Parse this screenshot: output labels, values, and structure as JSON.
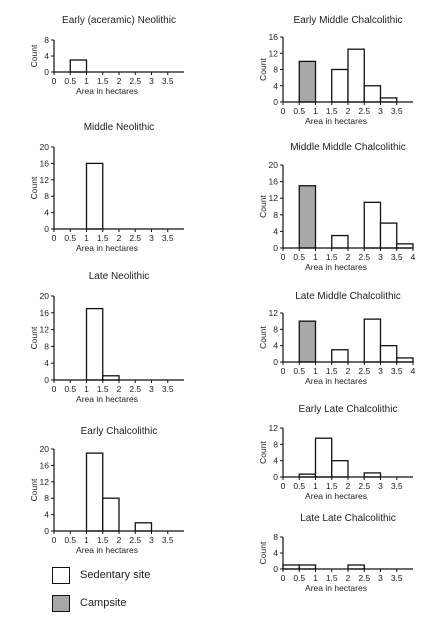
{
  "chart_data": [
    {
      "type": "bar",
      "title": "Early (aceramic) Neolithic",
      "xlabel": "Area in hectares",
      "ylabel": "Count",
      "xlim": [
        0,
        4
      ],
      "ylim": [
        0,
        8
      ],
      "yticks": [
        "0",
        "4",
        "8"
      ],
      "xticks": [
        "0",
        "0.5",
        "1",
        "1.5",
        "2",
        "2.5",
        "3",
        "3.5"
      ],
      "bars": [
        {
          "x0": 0.5,
          "x1": 1.0,
          "value": 3,
          "type": "Sedentary site"
        }
      ]
    },
    {
      "type": "bar",
      "title": "Middle Neolithic",
      "xlabel": "Area in hectares",
      "ylabel": "Count",
      "xlim": [
        0,
        4
      ],
      "ylim": [
        0,
        20
      ],
      "yticks": [
        "0",
        "4",
        "8",
        "12",
        "16",
        "20"
      ],
      "xticks": [
        "0",
        "0.5",
        "1",
        "1.5",
        "2",
        "2.5",
        "3",
        "3.5"
      ],
      "bars": [
        {
          "x0": 1.0,
          "x1": 1.5,
          "value": 16,
          "type": "Sedentary site"
        }
      ]
    },
    {
      "type": "bar",
      "title": "Late Neolithic",
      "xlabel": "Area in hectares",
      "ylabel": "Count",
      "xlim": [
        0,
        4
      ],
      "ylim": [
        0,
        20
      ],
      "yticks": [
        "0",
        "4",
        "8",
        "12",
        "16",
        "20"
      ],
      "xticks": [
        "0",
        "0.5",
        "1",
        "1.5",
        "2",
        "2.5",
        "3",
        "3.5"
      ],
      "bars": [
        {
          "x0": 1.0,
          "x1": 1.5,
          "value": 17,
          "type": "Sedentary site"
        },
        {
          "x0": 1.5,
          "x1": 2.0,
          "value": 1,
          "type": "Sedentary site"
        }
      ]
    },
    {
      "type": "bar",
      "title": "Early Chalcolithic",
      "xlabel": "Area in hectares",
      "ylabel": "Count",
      "xlim": [
        0,
        4
      ],
      "ylim": [
        0,
        20
      ],
      "yticks": [
        "0",
        "4",
        "8",
        "12",
        "16",
        "20"
      ],
      "xticks": [
        "0",
        "0.5",
        "1",
        "1.5",
        "2",
        "2.5",
        "3",
        "3.5"
      ],
      "bars": [
        {
          "x0": 1.0,
          "x1": 1.5,
          "value": 19,
          "type": "Sedentary site"
        },
        {
          "x0": 1.5,
          "x1": 2.0,
          "value": 8,
          "type": "Sedentary site"
        },
        {
          "x0": 2.5,
          "x1": 3.0,
          "value": 2,
          "type": "Sedentary site"
        }
      ]
    },
    {
      "type": "bar",
      "title": "Early Middle Chalcolithic",
      "xlabel": "Area in hectares",
      "ylabel": "Count",
      "xlim": [
        0,
        4
      ],
      "ylim": [
        0,
        16
      ],
      "yticks": [
        "0",
        "4",
        "8",
        "12",
        "16"
      ],
      "xticks": [
        "0",
        "0.5",
        "1",
        "1.5",
        "2",
        "2.5",
        "3",
        "3.5"
      ],
      "bars": [
        {
          "x0": 0.5,
          "x1": 1.0,
          "value": 10,
          "type": "Campsite"
        },
        {
          "x0": 1.5,
          "x1": 2.0,
          "value": 8,
          "type": "Sedentary site"
        },
        {
          "x0": 2.0,
          "x1": 2.5,
          "value": 13,
          "type": "Sedentary site"
        },
        {
          "x0": 2.5,
          "x1": 3.0,
          "value": 4,
          "type": "Sedentary site"
        },
        {
          "x0": 3.0,
          "x1": 3.5,
          "value": 1,
          "type": "Sedentary site"
        }
      ]
    },
    {
      "type": "bar",
      "title": "Middle Middle Chalcolithic",
      "xlabel": "Area in hectares",
      "ylabel": "Count",
      "xlim": [
        0,
        4
      ],
      "ylim": [
        0,
        20
      ],
      "yticks": [
        "0",
        "4",
        "8",
        "12",
        "16",
        "20"
      ],
      "xticks": [
        "0",
        "0.5",
        "1",
        "1.5",
        "2",
        "2.5",
        "3",
        "3.5",
        "4"
      ],
      "bars": [
        {
          "x0": 0.5,
          "x1": 1.0,
          "value": 15,
          "type": "Campsite"
        },
        {
          "x0": 1.5,
          "x1": 2.0,
          "value": 3,
          "type": "Sedentary site"
        },
        {
          "x0": 2.5,
          "x1": 3.0,
          "value": 11,
          "type": "Sedentary site"
        },
        {
          "x0": 3.0,
          "x1": 3.5,
          "value": 6,
          "type": "Sedentary site"
        },
        {
          "x0": 3.5,
          "x1": 4.0,
          "value": 1,
          "type": "Sedentary site"
        }
      ]
    },
    {
      "type": "bar",
      "title": "Late Middle Chalcolithic",
      "xlabel": "Area in hectares",
      "ylabel": "Count",
      "xlim": [
        0,
        4
      ],
      "ylim": [
        0,
        12
      ],
      "yticks": [
        "0",
        "4",
        "8",
        "12"
      ],
      "xticks": [
        "0",
        "0.5",
        "1",
        "1.5",
        "2",
        "2.5",
        "3",
        "3.5",
        "4"
      ],
      "bars": [
        {
          "x0": 0.5,
          "x1": 1.0,
          "value": 10,
          "type": "Campsite"
        },
        {
          "x0": 1.5,
          "x1": 2.0,
          "value": 3,
          "type": "Sedentary site"
        },
        {
          "x0": 2.5,
          "x1": 3.0,
          "value": 10.5,
          "type": "Sedentary site"
        },
        {
          "x0": 3.0,
          "x1": 3.5,
          "value": 4,
          "type": "Sedentary site"
        },
        {
          "x0": 3.5,
          "x1": 4.0,
          "value": 1,
          "type": "Sedentary site"
        }
      ]
    },
    {
      "type": "bar",
      "title": "Early Late Chalcolithic",
      "xlabel": "Area in hectares",
      "ylabel": "Count",
      "xlim": [
        0,
        4
      ],
      "ylim": [
        0,
        12
      ],
      "yticks": [
        "0",
        "4",
        "8",
        "12"
      ],
      "xticks": [
        "0",
        "0.5",
        "1",
        "1.5",
        "2",
        "2.5",
        "3",
        "3.5"
      ],
      "bars": [
        {
          "x0": 0.5,
          "x1": 1.0,
          "value": 0.7,
          "type": "Sedentary site"
        },
        {
          "x0": 1.0,
          "x1": 1.5,
          "value": 9.5,
          "type": "Sedentary site"
        },
        {
          "x0": 1.5,
          "x1": 2.0,
          "value": 4,
          "type": "Sedentary site"
        },
        {
          "x0": 2.5,
          "x1": 3.0,
          "value": 1,
          "type": "Sedentary site"
        }
      ]
    },
    {
      "type": "bar",
      "title": "Late Late Chalcolithic",
      "xlabel": "Area in hectares",
      "ylabel": "Count",
      "xlim": [
        0,
        4
      ],
      "ylim": [
        0,
        8
      ],
      "yticks": [
        "0",
        "4",
        "8"
      ],
      "xticks": [
        "0",
        "0.5",
        "1",
        "1.5",
        "2",
        "2.5",
        "3",
        "3.5"
      ],
      "bars": [
        {
          "x0": 0.0,
          "x1": 0.5,
          "value": 1,
          "type": "Sedentary site"
        },
        {
          "x0": 0.5,
          "x1": 1.0,
          "value": 1,
          "type": "Sedentary site"
        },
        {
          "x0": 2.0,
          "x1": 2.5,
          "value": 1,
          "type": "Sedentary site"
        }
      ]
    }
  ],
  "legend": {
    "items": [
      {
        "label": "Sedentary site",
        "color": "#ffffff"
      },
      {
        "label": "Campsite",
        "color": "#a8a8a8"
      }
    ]
  },
  "colors": {
    "sedentary": "#ffffff",
    "campsite": "#a8a8a8",
    "axis": "#111111"
  }
}
